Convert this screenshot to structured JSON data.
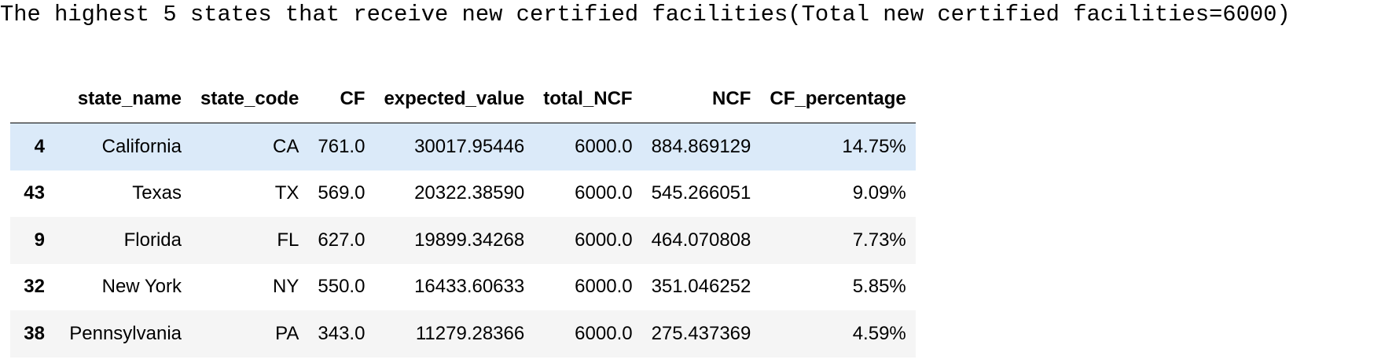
{
  "title": "The highest 5 states that receive new certified facilities(Total new certified facilities=6000)",
  "table": {
    "columns": [
      "",
      "state_name",
      "state_code",
      "CF",
      "expected_value",
      "total_NCF",
      "NCF",
      "CF_percentage"
    ],
    "rows": [
      {
        "index": "4",
        "state_name": "California",
        "state_code": "CA",
        "CF": "761.0",
        "expected_value": "30017.95446",
        "total_NCF": "6000.0",
        "NCF": "884.869129",
        "CF_percentage": "14.75%"
      },
      {
        "index": "43",
        "state_name": "Texas",
        "state_code": "TX",
        "CF": "569.0",
        "expected_value": "20322.38590",
        "total_NCF": "6000.0",
        "NCF": "545.266051",
        "CF_percentage": "9.09%"
      },
      {
        "index": "9",
        "state_name": "Florida",
        "state_code": "FL",
        "CF": "627.0",
        "expected_value": "19899.34268",
        "total_NCF": "6000.0",
        "NCF": "464.070808",
        "CF_percentage": "7.73%"
      },
      {
        "index": "32",
        "state_name": "New York",
        "state_code": "NY",
        "CF": "550.0",
        "expected_value": "16433.60633",
        "total_NCF": "6000.0",
        "NCF": "351.046252",
        "CF_percentage": "5.85%"
      },
      {
        "index": "38",
        "state_name": "Pennsylvania",
        "state_code": "PA",
        "CF": "343.0",
        "expected_value": "11279.28366",
        "total_NCF": "6000.0",
        "NCF": "275.437369",
        "CF_percentage": "4.59%"
      }
    ]
  },
  "colors": {
    "hover_row": "#dbeaf9",
    "striped_row": "#f5f5f5"
  }
}
